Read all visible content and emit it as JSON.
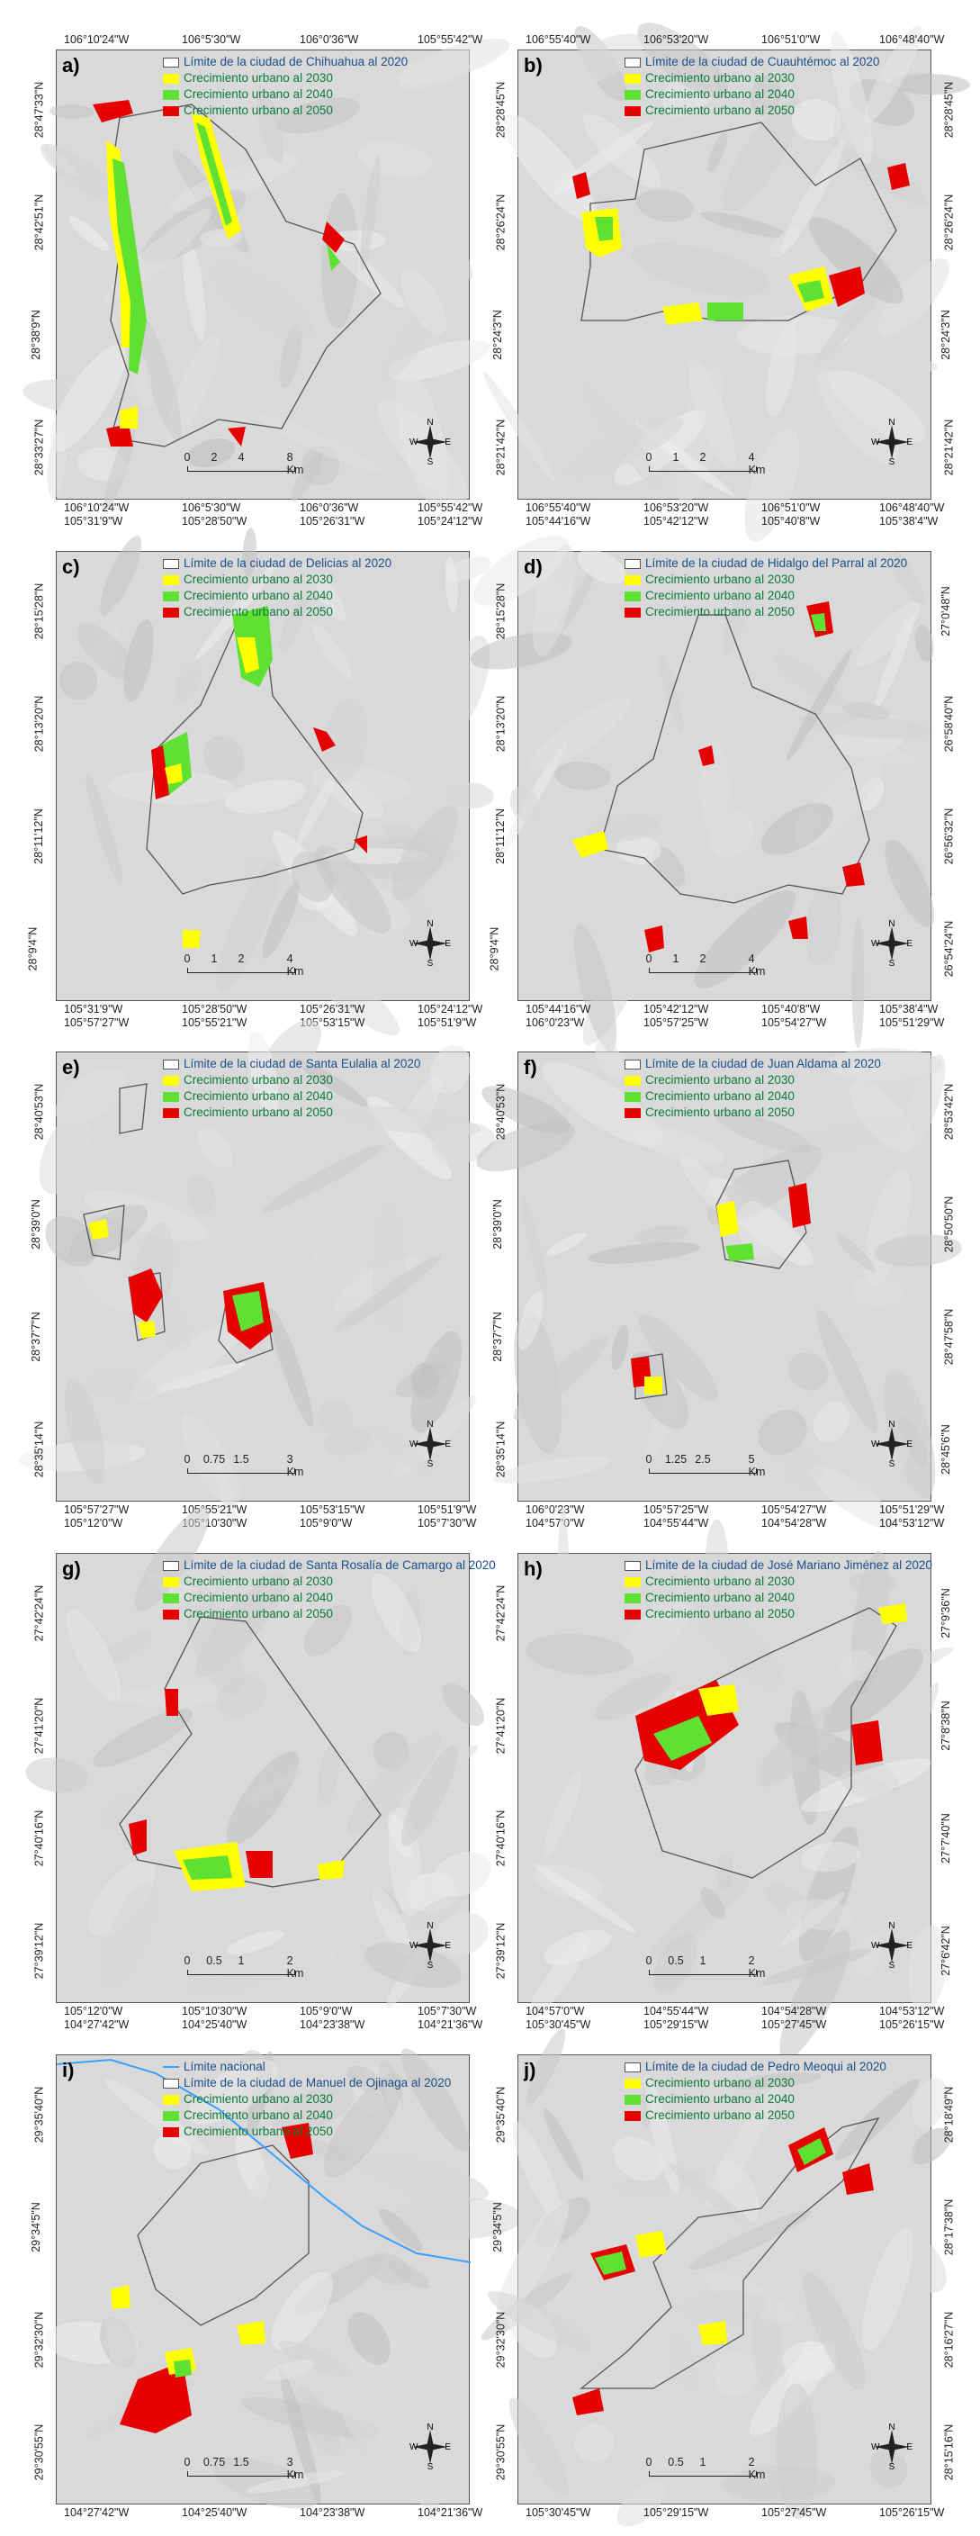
{
  "colors": {
    "outline": "#555555",
    "y2030": "#ffff00",
    "g2040": "#5ee132",
    "r2050": "#e60000",
    "national": "#3aa0ff"
  },
  "legend_common": {
    "y2030": "Crecimiento urbano al 2030",
    "g2040": "Crecimiento urbano al 2040",
    "r2050": "Crecimiento urbano al 2050"
  },
  "compass": {
    "n": "N",
    "s": "S",
    "e": "E",
    "w": "W"
  },
  "panels": [
    {
      "label": "a)",
      "limit": "Límite de la ciudad de Chihuahua al 2020",
      "top": [
        "106°10'24\"W",
        "106°5'30\"W",
        "106°0'36\"W",
        "105°55'42\"W"
      ],
      "bottom1": [
        "106°10'24\"W",
        "106°5'30\"W",
        "106°0'36\"W",
        "105°55'42\"W"
      ],
      "bottom2": [
        "105°31'9\"W",
        "105°28'50\"W",
        "105°26'31\"W",
        "105°24'12\"W"
      ],
      "left": [
        "28°47'33\"N",
        "28°42'51\"N",
        "28°38'9\"N",
        "28°33'27\"N"
      ],
      "right": [],
      "scale": [
        "0",
        "2",
        "4",
        "8 Km"
      ]
    },
    {
      "label": "b)",
      "limit": "Límite de la ciudad de Cuauhtémoc al 2020",
      "top": [
        "106°55'40\"W",
        "106°53'20\"W",
        "106°51'0\"W",
        "106°48'40\"W"
      ],
      "bottom1": [
        "106°55'40\"W",
        "106°53'20\"W",
        "106°51'0\"W",
        "106°48'40\"W"
      ],
      "bottom2": [
        "105°44'16\"W",
        "105°42'12\"W",
        "105°40'8\"W",
        "105°38'4\"W"
      ],
      "left": [
        "28°28'45\"N",
        "28°26'24\"N",
        "28°24'3\"N",
        "28°21'42\"N"
      ],
      "right": [
        "28°28'45\"N",
        "28°26'24\"N",
        "28°24'3\"N",
        "28°21'42\"N"
      ],
      "scale": [
        "0",
        "1",
        "2",
        "4 Km"
      ]
    },
    {
      "label": "c)",
      "limit": "Límite de la ciudad de Delicias al 2020",
      "top": [],
      "bottom1": [
        "105°31'9\"W",
        "105°28'50\"W",
        "105°26'31\"W",
        "105°24'12\"W"
      ],
      "bottom2": [
        "105°57'27\"W",
        "105°55'21\"W",
        "105°53'15\"W",
        "105°51'9\"W"
      ],
      "left": [
        "28°15'28\"N",
        "28°13'20\"N",
        "28°11'12\"N",
        "28°9'4\"N"
      ],
      "right": [],
      "scale": [
        "0",
        "1",
        "2",
        "4 Km"
      ]
    },
    {
      "label": "d)",
      "limit": "Límite de la ciudad de Hidalgo del Parral al 2020",
      "top": [],
      "bottom1": [
        "105°44'16\"W",
        "105°42'12\"W",
        "105°40'8\"W",
        "105°38'4\"W"
      ],
      "bottom2": [
        "106°0'23\"W",
        "105°57'25\"W",
        "105°54'27\"W",
        "105°51'29\"W"
      ],
      "left": [
        "28°15'28\"N",
        "28°13'20\"N",
        "28°11'12\"N",
        "28°9'4\"N"
      ],
      "right": [
        "27°0'48\"N",
        "26°58'40\"N",
        "26°56'32\"N",
        "26°54'24\"N"
      ],
      "scale": [
        "0",
        "1",
        "2",
        "4 Km"
      ]
    },
    {
      "label": "e)",
      "limit": "Límite de la ciudad de Santa Eulalia al 2020",
      "top": [],
      "bottom1": [
        "105°57'27\"W",
        "105°55'21\"W",
        "105°53'15\"W",
        "105°51'9\"W"
      ],
      "bottom2": [
        "105°12'0\"W",
        "105°10'30\"W",
        "105°9'0\"W",
        "105°7'30\"W"
      ],
      "left": [
        "28°40'53\"N",
        "28°39'0\"N",
        "28°37'7\"N",
        "28°35'14\"N"
      ],
      "right": [],
      "scale": [
        "0",
        "0.75",
        "1.5",
        "3 Km"
      ]
    },
    {
      "label": "f)",
      "limit": "Límite de la ciudad de Juan Aldama al 2020",
      "top": [],
      "bottom1": [
        "106°0'23\"W",
        "105°57'25\"W",
        "105°54'27\"W",
        "105°51'29\"W"
      ],
      "bottom2": [
        "104°57'0\"W",
        "104°55'44\"W",
        "104°54'28\"W",
        "104°53'12\"W"
      ],
      "left": [
        "28°40'53\"N",
        "28°39'0\"N",
        "28°37'7\"N",
        "28°35'14\"N"
      ],
      "right": [
        "28°53'42\"N",
        "28°50'50\"N",
        "28°47'58\"N",
        "28°45'6\"N"
      ],
      "scale": [
        "0",
        "1.25",
        "2.5",
        "5 Km"
      ]
    },
    {
      "label": "g)",
      "limit": "Límite de la ciudad de Santa Rosalía de Camargo al 2020",
      "top": [],
      "bottom1": [
        "105°12'0\"W",
        "105°10'30\"W",
        "105°9'0\"W",
        "105°7'30\"W"
      ],
      "bottom2": [
        "104°27'42\"W",
        "104°25'40\"W",
        "104°23'38\"W",
        "104°21'36\"W"
      ],
      "left": [
        "27°42'24\"N",
        "27°41'20\"N",
        "27°40'16\"N",
        "27°39'12\"N"
      ],
      "right": [],
      "scale": [
        "0",
        "0.5",
        "1",
        "2 Km"
      ]
    },
    {
      "label": "h)",
      "limit": "Límite de la ciudad de José Mariano Jiménez al 2020",
      "top": [],
      "bottom1": [
        "104°57'0\"W",
        "104°55'44\"W",
        "104°54'28\"W",
        "104°53'12\"W"
      ],
      "bottom2": [
        "105°30'45\"W",
        "105°29'15\"W",
        "105°27'45\"W",
        "105°26'15\"W"
      ],
      "left": [
        "27°42'24\"N",
        "27°41'20\"N",
        "27°40'16\"N",
        "27°39'12\"N"
      ],
      "right": [
        "27°9'36\"N",
        "27°8'38\"N",
        "27°7'40\"N",
        "27°6'42\"N"
      ],
      "scale": [
        "0",
        "0.5",
        "1",
        "2 Km"
      ]
    },
    {
      "label": "i)",
      "national": "Límite nacional",
      "limit": "Límite de la ciudad de Manuel de Ojinaga al 2020",
      "top": [],
      "bottom1": [
        "104°27'42\"W",
        "104°25'40\"W",
        "104°23'38\"W",
        "104°21'36\"W"
      ],
      "bottom2": [],
      "left": [
        "29°35'40\"N",
        "29°34'5\"N",
        "29°32'30\"N",
        "29°30'55\"N"
      ],
      "right": [],
      "scale": [
        "0",
        "0.75",
        "1.5",
        "3 Km"
      ]
    },
    {
      "label": "j)",
      "limit": "Límite de la ciudad de Pedro Meoqui al 2020",
      "top": [],
      "bottom1": [
        "105°30'45\"W",
        "105°29'15\"W",
        "105°27'45\"W",
        "105°26'15\"W"
      ],
      "bottom2": [],
      "left": [
        "29°35'40\"N",
        "29°34'5\"N",
        "29°32'30\"N",
        "29°30'55\"N"
      ],
      "right": [
        "28°18'49\"N",
        "28°17'38\"N",
        "28°16'27\"N",
        "28°15'16\"N"
      ],
      "scale": [
        "0",
        "0.5",
        "1",
        "2 Km"
      ]
    }
  ]
}
